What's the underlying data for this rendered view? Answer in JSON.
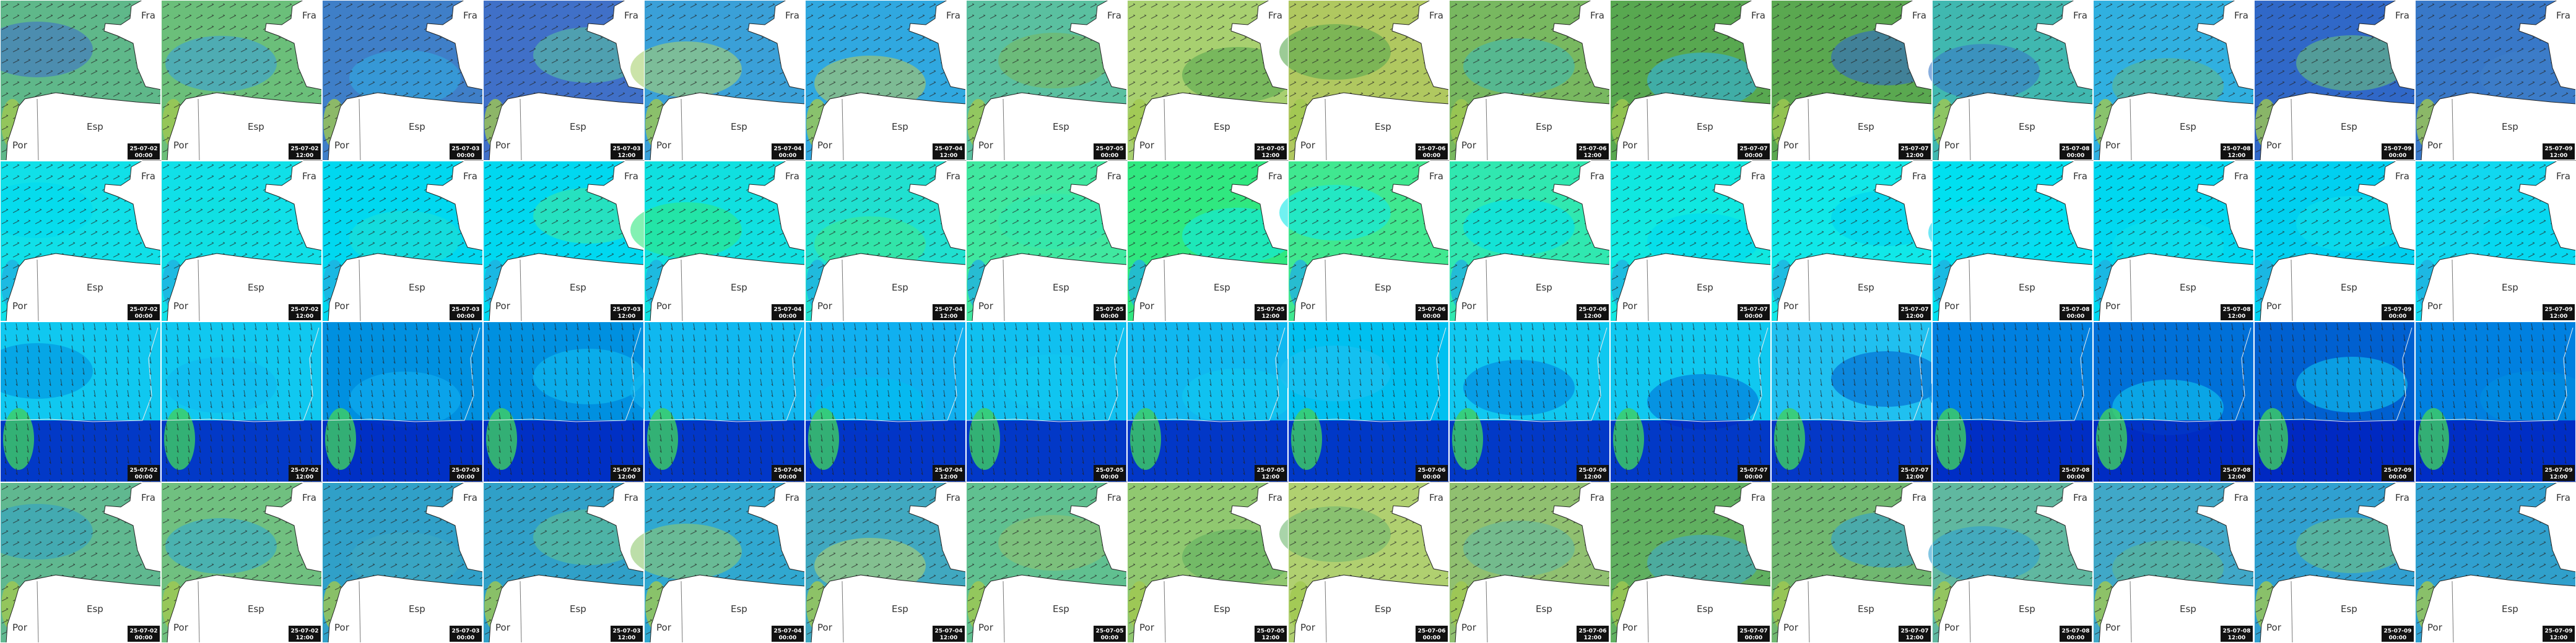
{
  "map_labels": {
    "france": "Fra",
    "spain": "Esp",
    "portugal": "Por"
  },
  "columns": [
    {
      "date": "25-07-02",
      "time": "00:00"
    },
    {
      "date": "25-07-02",
      "time": "12:00"
    },
    {
      "date": "25-07-03",
      "time": "00:00"
    },
    {
      "date": "25-07-03",
      "time": "12:00"
    },
    {
      "date": "25-07-04",
      "time": "00:00"
    },
    {
      "date": "25-07-04",
      "time": "12:00"
    },
    {
      "date": "25-07-05",
      "time": "00:00"
    },
    {
      "date": "25-07-05",
      "time": "12:00"
    },
    {
      "date": "25-07-06",
      "time": "00:00"
    },
    {
      "date": "25-07-06",
      "time": "12:00"
    },
    {
      "date": "25-07-07",
      "time": "00:00"
    },
    {
      "date": "25-07-07",
      "time": "12:00"
    },
    {
      "date": "25-07-08",
      "time": "00:00"
    },
    {
      "date": "25-07-08",
      "time": "12:00"
    },
    {
      "date": "25-07-09",
      "time": "00:00"
    },
    {
      "date": "25-07-09",
      "time": "12:00"
    }
  ]
}
